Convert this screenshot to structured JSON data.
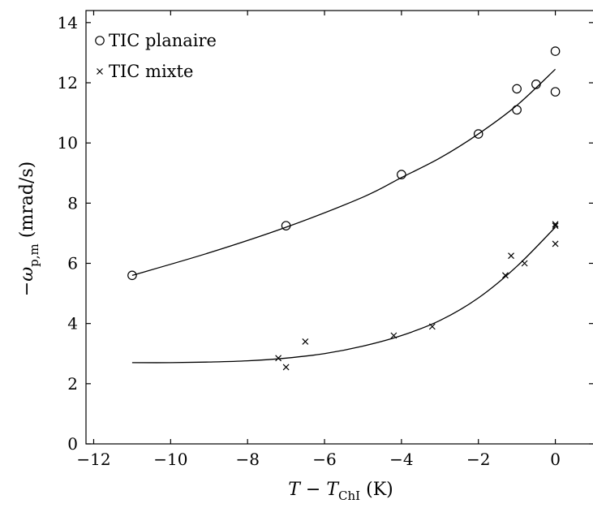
{
  "chart_data": {
    "type": "scatter",
    "xlabel": "T − T_ChI (K)",
    "ylabel": "−ω_p,m (mrad/s)",
    "xlim": [
      -12.2,
      1.0
    ],
    "ylim": [
      0,
      14.4
    ],
    "x_ticks": [
      -12,
      -10,
      -8,
      -6,
      -4,
      -2,
      0
    ],
    "x_tick_labels": [
      "−12",
      "−10",
      "−8",
      "−6",
      "−4",
      "−2",
      "0"
    ],
    "y_ticks": [
      0,
      2,
      4,
      6,
      8,
      10,
      12,
      14
    ],
    "y_tick_labels": [
      "0",
      "2",
      "4",
      "6",
      "8",
      "10",
      "12",
      "14"
    ],
    "grid": false,
    "legend_position": "top-left",
    "series": [
      {
        "name": "TIC planaire",
        "marker": "circle",
        "points": [
          {
            "x": -11,
            "y": 5.6
          },
          {
            "x": -7,
            "y": 7.25
          },
          {
            "x": -4,
            "y": 8.95
          },
          {
            "x": -2,
            "y": 10.3
          },
          {
            "x": -1,
            "y": 11.8
          },
          {
            "x": -1,
            "y": 11.1
          },
          {
            "x": -0.5,
            "y": 11.95
          },
          {
            "x": 0,
            "y": 13.05
          },
          {
            "x": 0,
            "y": 11.7
          }
        ],
        "fit": [
          {
            "x": -11,
            "y": 5.6
          },
          {
            "x": -9,
            "y": 6.35
          },
          {
            "x": -7,
            "y": 7.2
          },
          {
            "x": -5,
            "y": 8.2
          },
          {
            "x": -4,
            "y": 8.85
          },
          {
            "x": -3,
            "y": 9.5
          },
          {
            "x": -2,
            "y": 10.3
          },
          {
            "x": -1,
            "y": 11.25
          },
          {
            "x": 0,
            "y": 12.45
          }
        ]
      },
      {
        "name": "TIC mixte",
        "marker": "cross",
        "points": [
          {
            "x": -7.2,
            "y": 2.85
          },
          {
            "x": -7.0,
            "y": 2.55
          },
          {
            "x": -6.5,
            "y": 3.4
          },
          {
            "x": -4.2,
            "y": 3.6
          },
          {
            "x": -3.2,
            "y": 3.9
          },
          {
            "x": -1.3,
            "y": 5.6
          },
          {
            "x": -1.15,
            "y": 6.25
          },
          {
            "x": -0.8,
            "y": 6.0
          },
          {
            "x": 0,
            "y": 7.25
          },
          {
            "x": 0,
            "y": 7.3
          },
          {
            "x": 0,
            "y": 6.65
          }
        ],
        "fit": [
          {
            "x": -11,
            "y": 2.7
          },
          {
            "x": -10,
            "y": 2.7
          },
          {
            "x": -9,
            "y": 2.72
          },
          {
            "x": -8,
            "y": 2.76
          },
          {
            "x": -7,
            "y": 2.85
          },
          {
            "x": -6,
            "y": 3.0
          },
          {
            "x": -5,
            "y": 3.25
          },
          {
            "x": -4,
            "y": 3.6
          },
          {
            "x": -3,
            "y": 4.1
          },
          {
            "x": -2,
            "y": 4.85
          },
          {
            "x": -1,
            "y": 5.9
          },
          {
            "x": 0,
            "y": 7.2
          }
        ]
      }
    ]
  }
}
